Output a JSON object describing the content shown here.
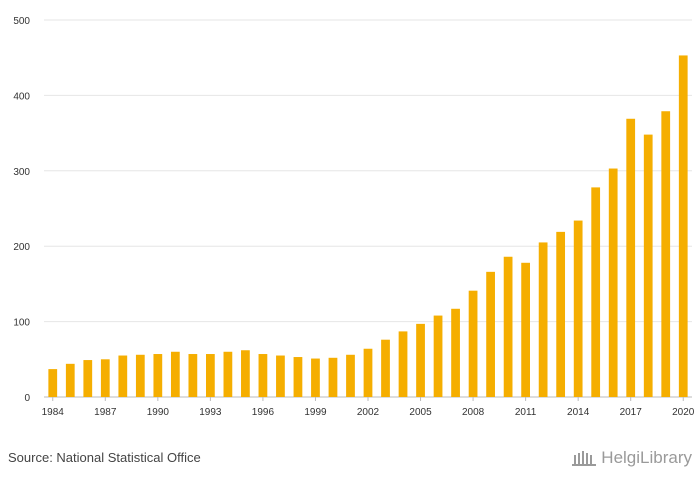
{
  "chart_data": {
    "type": "bar",
    "x": [
      1984,
      1985,
      1986,
      1987,
      1988,
      1989,
      1990,
      1991,
      1992,
      1993,
      1994,
      1995,
      1996,
      1997,
      1998,
      1999,
      2000,
      2001,
      2002,
      2003,
      2004,
      2005,
      2006,
      2007,
      2008,
      2009,
      2010,
      2011,
      2012,
      2013,
      2014,
      2015,
      2016,
      2017,
      2018,
      2019,
      2020
    ],
    "values": [
      37,
      44,
      49,
      50,
      55,
      56,
      57,
      60,
      57,
      57,
      60,
      62,
      57,
      55,
      53,
      51,
      52,
      56,
      64,
      76,
      87,
      97,
      108,
      117,
      141,
      166,
      186,
      178,
      205,
      219,
      234,
      278,
      303,
      369,
      348,
      379,
      453
    ],
    "x_tick_labels": [
      "1984",
      "1987",
      "1990",
      "1993",
      "1996",
      "1999",
      "2002",
      "2005",
      "2008",
      "2011",
      "2014",
      "2017",
      "2020"
    ],
    "y_tick_labels": [
      "0",
      "100",
      "200",
      "300",
      "400",
      "500"
    ],
    "ylim": [
      0,
      500
    ],
    "bar_color": "#F5AE00",
    "grid": true,
    "title": "",
    "xlabel": "",
    "ylabel": ""
  },
  "footer": {
    "source": "Source: National Statistical Office",
    "brand": "HelgiLibrary"
  }
}
